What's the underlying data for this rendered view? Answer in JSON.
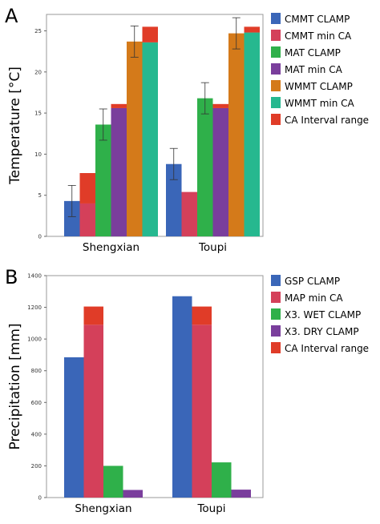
{
  "colors": {
    "blue": "#3a66b8",
    "pink": "#d4405a",
    "green": "#2fb04a",
    "purple": "#7a3e9c",
    "orange": "#d47a1a",
    "teal": "#26b88f",
    "red": "#e03c28"
  },
  "chart_data": [
    {
      "type": "bar",
      "panel_label": "A",
      "title": "",
      "xlabel": "",
      "ylabel": "Temperature [°C]",
      "ylim": [
        0,
        27
      ],
      "yticks": [
        0,
        5,
        10,
        15,
        20,
        25
      ],
      "categories": [
        "Shengxian",
        "Toupi"
      ],
      "legend_position": "right",
      "series": [
        {
          "name": "CMMT CLAMP",
          "color": "#3a66b8",
          "values": [
            4.3,
            8.8
          ],
          "error": [
            1.9,
            1.9
          ]
        },
        {
          "name": "CMMT min CA",
          "color": "#d4405a",
          "values": [
            4.0,
            5.4
          ]
        },
        {
          "name": "MAT CLAMP",
          "color": "#2fb04a",
          "values": [
            13.6,
            16.8
          ],
          "error": [
            1.9,
            1.9
          ]
        },
        {
          "name": "MAT min CA",
          "color": "#7a3e9c",
          "values": [
            15.6,
            15.6
          ]
        },
        {
          "name": "WMMT CLAMP",
          "color": "#d47a1a",
          "values": [
            23.7,
            24.7
          ],
          "error": [
            1.9,
            1.9
          ]
        },
        {
          "name": "WMMT min CA",
          "color": "#26b88f",
          "values": [
            23.6,
            24.8
          ]
        },
        {
          "name": "CA Interval range",
          "color": "#e03c28",
          "stacked_ranges": [
            [
              [
                4.0,
                7.7
              ],
              [
                15.6,
                16.1
              ],
              [
                23.6,
                25.5
              ]
            ],
            [
              [
                5.4,
                5.4
              ],
              [
                15.6,
                16.1
              ],
              [
                24.8,
                25.5
              ]
            ]
          ]
        }
      ]
    },
    {
      "type": "bar",
      "panel_label": "B",
      "title": "",
      "xlabel": "",
      "ylabel": "Precipitation [mm]",
      "ylim": [
        0,
        1400
      ],
      "yticks": [
        0,
        200,
        400,
        600,
        800,
        1000,
        1200,
        1400
      ],
      "categories": [
        "Shengxian",
        "Toupi"
      ],
      "legend_position": "right",
      "series": [
        {
          "name": "GSP CLAMP",
          "color": "#3a66b8",
          "values": [
            885,
            1270
          ]
        },
        {
          "name": "MAP min CA",
          "color": "#d4405a",
          "values": [
            1090,
            1090
          ]
        },
        {
          "name": "X3. WET CLAMP",
          "color": "#2fb04a",
          "values": [
            200,
            222
          ]
        },
        {
          "name": "X3. DRY CLAMP",
          "color": "#7a3e9c",
          "values": [
            48,
            50
          ]
        },
        {
          "name": "CA Interval range",
          "color": "#e03c28",
          "stacked_ranges": [
            [
              [
                1090,
                1205
              ]
            ],
            [
              [
                1090,
                1205
              ]
            ]
          ]
        }
      ]
    }
  ]
}
